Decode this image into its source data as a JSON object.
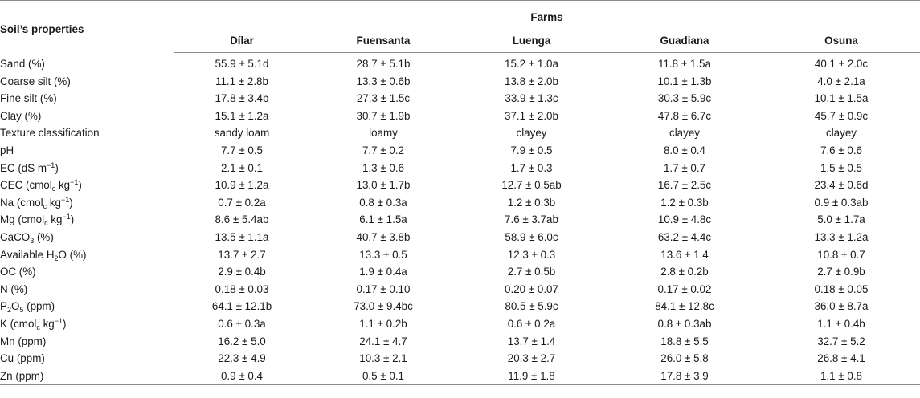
{
  "header": {
    "corner": "Soil’s properties",
    "group": "Farms",
    "farms": [
      "Dílar",
      "Fuensanta",
      "Luenga",
      "Guadiana",
      "Osuna"
    ]
  },
  "rows": [
    {
      "label": "Sand (%)",
      "values": [
        "55.9 ± 5.1d",
        "28.7 ± 5.1b",
        "15.2 ± 1.0a",
        "11.8 ± 1.5a",
        "40.1 ± 2.0c"
      ]
    },
    {
      "label": "Coarse silt (%)",
      "values": [
        "11.1 ± 2.8b",
        "13.3 ± 0.6b",
        "13.8 ± 2.0b",
        "10.1 ± 1.3b",
        "4.0 ± 2.1a"
      ]
    },
    {
      "label": "Fine silt (%)",
      "values": [
        "17.8 ± 3.4b",
        "27.3 ± 1.5c",
        "33.9 ± 1.3c",
        "30.3 ± 5.9c",
        "10.1 ± 1.5a"
      ]
    },
    {
      "label": "Clay (%)",
      "values": [
        "15.1 ± 1.2a",
        "30.7 ± 1.9b",
        "37.1 ± 2.0b",
        "47.8 ± 6.7c",
        "45.7 ± 0.9c"
      ]
    },
    {
      "label": "Texture classification",
      "values": [
        "sandy loam",
        "loamy",
        "clayey",
        "clayey",
        "clayey"
      ]
    },
    {
      "label": "pH",
      "values": [
        "7.7 ± 0.5",
        "7.7 ± 0.2",
        "7.9 ± 0.5",
        "8.0 ± 0.4",
        "7.6 ± 0.6"
      ]
    },
    {
      "label": "EC (dS m",
      "sup": "−1",
      "tail": ")",
      "values": [
        "2.1 ± 0.1",
        "1.3 ± 0.6",
        "1.7 ± 0.3",
        "1.7 ± 0.7",
        "1.5 ± 0.5"
      ]
    },
    {
      "label": "CEC (cmol",
      "sub": "c",
      "mid": " kg",
      "sup": "−1",
      "tail": ")",
      "values": [
        "10.9 ± 1.2a",
        "13.0 ± 1.7b",
        "12.7 ± 0.5ab",
        "16.7 ± 2.5c",
        "23.4 ± 0.6d"
      ]
    },
    {
      "label": "Na (cmol",
      "sub": "c",
      "mid": " kg",
      "sup": "−1",
      "tail": ")",
      "values": [
        "0.7 ± 0.2a",
        "0.8 ± 0.3a",
        "1.2 ± 0.3b",
        "1.2 ± 0.3b",
        "0.9 ± 0.3ab"
      ]
    },
    {
      "label": "Mg (cmol",
      "sub": "c",
      "mid": " kg",
      "sup": "−1",
      "tail": ")",
      "values": [
        "8.6 ± 5.4ab",
        "6.1 ± 1.5a",
        "7.6 ± 3.7ab",
        "10.9 ± 4.8c",
        "5.0 ± 1.7a"
      ]
    },
    {
      "label": "CaCO",
      "sub": "3",
      "tail": " (%)",
      "values": [
        "13.5 ± 1.1a",
        "40.7 ± 3.8b",
        "58.9 ± 6.0c",
        "63.2 ± 4.4c",
        "13.3 ± 1.2a"
      ]
    },
    {
      "label": "Available H",
      "sub": "2",
      "tail": "O (%)",
      "values": [
        "13.7 ± 2.7",
        "13.3 ± 0.5",
        "12.3 ± 0.3",
        "13.6 ± 1.4",
        "10.8 ± 0.7"
      ]
    },
    {
      "label": "OC (%)",
      "values": [
        "2.9 ± 0.4b",
        "1.9 ± 0.4a",
        "2.7 ± 0.5b",
        "2.8 ± 0.2b",
        "2.7 ± 0.9b"
      ]
    },
    {
      "label": "N (%)",
      "values": [
        "0.18 ± 0.03",
        "0.17 ± 0.10",
        "0.20 ± 0.07",
        "0.17 ± 0.02",
        "0.18 ± 0.05"
      ]
    },
    {
      "label": "P",
      "sub": "2",
      "mid": "O",
      "sub2": "5",
      "tail": " (ppm)",
      "values": [
        "64.1 ± 12.1b",
        "73.0 ± 9.4bc",
        "80.5 ± 5.9c",
        "84.1 ± 12.8c",
        "36.0 ± 8.7a"
      ]
    },
    {
      "label": "K (cmol",
      "sub": "c",
      "mid": " kg",
      "sup": "−1",
      "tail": ")",
      "values": [
        "0.6 ± 0.3a",
        "1.1 ± 0.2b",
        "0.6 ± 0.2a",
        "0.8 ± 0.3ab",
        "1.1 ± 0.4b"
      ]
    },
    {
      "label": "Mn (ppm)",
      "values": [
        "16.2 ± 5.0",
        "24.1 ± 4.7",
        "13.7 ± 1.4",
        "18.8 ± 5.5",
        "32.7 ± 5.2"
      ]
    },
    {
      "label": "Cu (ppm)",
      "values": [
        "22.3 ± 4.9",
        "10.3 ± 2.1",
        "20.3 ± 2.7",
        "26.0 ± 5.8",
        "26.8 ± 4.1"
      ]
    },
    {
      "label": "Zn (ppm)",
      "values": [
        "0.9 ± 0.4",
        "0.5 ± 0.1",
        "11.9 ± 1.8",
        "17.8 ± 3.9",
        "1.1 ± 0.8"
      ]
    }
  ]
}
